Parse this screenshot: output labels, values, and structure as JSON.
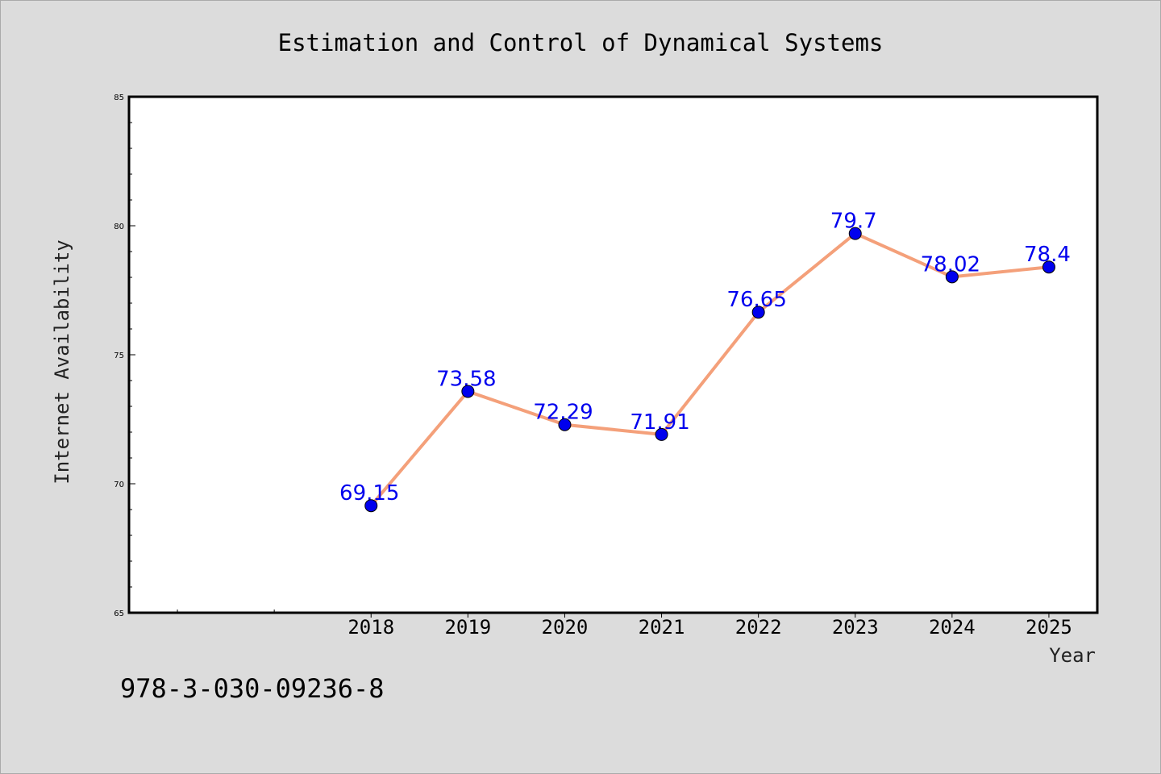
{
  "chart_data": {
    "type": "line",
    "title": "Estimation and Control of Dynamical Systems",
    "xlabel": "Year",
    "ylabel": "Internet Availability",
    "categories": [
      "2018",
      "2019",
      "2020",
      "2021",
      "2022",
      "2023",
      "2024",
      "2025"
    ],
    "x_axis_range": [
      2015.5,
      2025.5
    ],
    "series": [
      {
        "values": [
          69.15,
          73.58,
          72.29,
          71.91,
          76.65,
          79.7,
          78.02,
          78.4
        ],
        "labels": [
          "69.15",
          "73.58",
          "72.29",
          "71.91",
          "76.65",
          "79.7",
          "78.02",
          "78.4"
        ],
        "line_color": "#f4a07a",
        "marker_color": "#0000ee",
        "label_color": "#0000ee"
      }
    ],
    "yticks": [
      "65",
      "70",
      "75",
      "80",
      "85"
    ],
    "ylim": [
      65,
      85
    ],
    "grid": false,
    "legend": "none"
  },
  "annotation": "978-3-030-09236-8",
  "colors": {
    "figure_background": "#dcdcdc",
    "plot_background": "#ffffff",
    "axis": "#000000",
    "text": "#000000"
  }
}
